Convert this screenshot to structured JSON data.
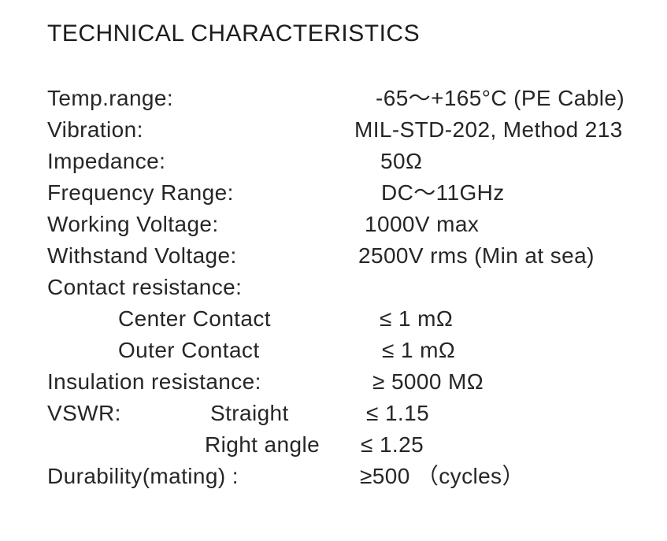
{
  "page": {
    "title": "TECHNICAL CHARACTERISTICS"
  },
  "colors": {
    "background": "#ffffff",
    "text": "#262626",
    "title_text": "#1c1c1c"
  },
  "table": {
    "rows": [
      {
        "label": "Temp.range:",
        "value": "-65～+165°C (PE Cable)"
      },
      {
        "label": "Vibration:",
        "value": "MIL-STD-202, Method 213"
      },
      {
        "label": "Impedance:",
        "value": "50Ω"
      },
      {
        "label": "Frequency Range:",
        "value": "DC～11GHz"
      },
      {
        "label": "Working Voltage:",
        "value": "1000V max"
      },
      {
        "label": "Withstand Voltage:",
        "value": "2500V rms (Min at sea)"
      },
      {
        "label": "Contact resistance:",
        "value": ""
      },
      {
        "label": "Center Contact",
        "value": "≤ 1 mΩ"
      },
      {
        "label": "Outer Contact",
        "value": "≤ 1 mΩ"
      },
      {
        "label": "Insulation resistance:",
        "value": "≥ 5000 MΩ"
      },
      {
        "label": "VSWR:",
        "sublabel": "Straight",
        "value": "≤ 1.15"
      },
      {
        "label": "",
        "sublabel": "Right angle",
        "value": "≤ 1.25"
      },
      {
        "label": "Durability(mating) :",
        "value": "≥500 （cycles）"
      }
    ]
  }
}
